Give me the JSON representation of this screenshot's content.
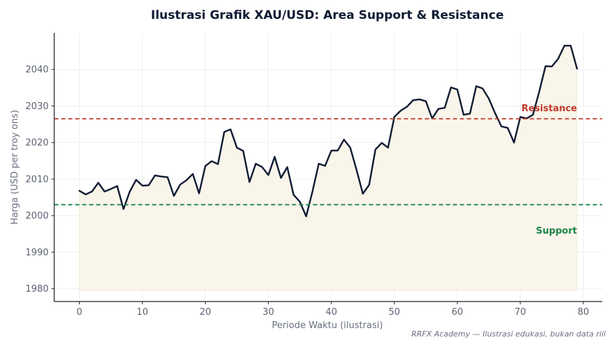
{
  "chart_data": {
    "type": "line",
    "title": "Ilustrasi Grafik XAU/USD: Area Support & Resistance",
    "xlabel": "Periode Waktu (ilustrasi)",
    "ylabel": "Harga (USD per troy ons)",
    "xlim": [
      -4,
      83
    ],
    "ylim": [
      1976.5,
      2050
    ],
    "xticks": [
      0,
      10,
      20,
      30,
      40,
      50,
      60,
      70,
      80
    ],
    "yticks": [
      1980,
      1990,
      2000,
      2010,
      2020,
      2030,
      2040
    ],
    "grid": true,
    "fill_baseline": 1979.5,
    "colors": {
      "price": "#0f1b33",
      "fill": "#f9f5ea",
      "resistance": "#c0392b",
      "support": "#1e8449",
      "grid": "#ebebeb",
      "axis": "#222222"
    },
    "series": [
      {
        "x": [
          0,
          1,
          2,
          3,
          4,
          5,
          6,
          7,
          8,
          9,
          10,
          11,
          12,
          13,
          14,
          15,
          16,
          17,
          18,
          19,
          20,
          21,
          22,
          23,
          24,
          25,
          26,
          27,
          28,
          29,
          30,
          31,
          32,
          33,
          34,
          35,
          36,
          37,
          38,
          39,
          40,
          41,
          42,
          43,
          44,
          45,
          46,
          47,
          48,
          49,
          50,
          51,
          52,
          53,
          54,
          55,
          56,
          57,
          58,
          59,
          60,
          61,
          62,
          63,
          64,
          65,
          66,
          67,
          68,
          69,
          70,
          71,
          72,
          73,
          74,
          75,
          76,
          77,
          78,
          79
        ],
        "values": [
          2006.8,
          2005.8,
          2006.6,
          2009.0,
          2006.6,
          2007.3,
          2008.1,
          2001.8,
          2006.6,
          2009.8,
          2008.2,
          2008.3,
          2011.0,
          2010.7,
          2010.5,
          2005.4,
          2008.5,
          2009.7,
          2011.4,
          2006.1,
          2013.6,
          2014.9,
          2014.1,
          2022.9,
          2023.6,
          2018.6,
          2017.7,
          2009.2,
          2014.2,
          2013.3,
          2011.1,
          2016.1,
          2010.3,
          2013.3,
          2005.7,
          2003.8,
          1999.8,
          2006.6,
          2014.2,
          2013.6,
          2017.8,
          2017.8,
          2020.8,
          2018.6,
          2012.5,
          2006.0,
          2008.4,
          2018.1,
          2019.9,
          2018.6,
          2027.0,
          2028.7,
          2029.8,
          2031.6,
          2031.8,
          2031.3,
          2026.6,
          2029.2,
          2029.5,
          2035.1,
          2034.5,
          2027.6,
          2027.9,
          2035.4,
          2034.8,
          2032.0,
          2028.0,
          2024.4,
          2024.0,
          2020.0,
          2027.0,
          2026.6,
          2027.6,
          2033.9,
          2040.9,
          2040.8,
          2042.9,
          2046.5,
          2046.5,
          2040.2
        ]
      }
    ],
    "resistance": {
      "label": "Resistance",
      "value": 2026.5
    },
    "support": {
      "label": "Support",
      "value": 2003.0
    },
    "source_note": "RRFX Academy — Ilustrasi edukasi, bukan data riil"
  }
}
